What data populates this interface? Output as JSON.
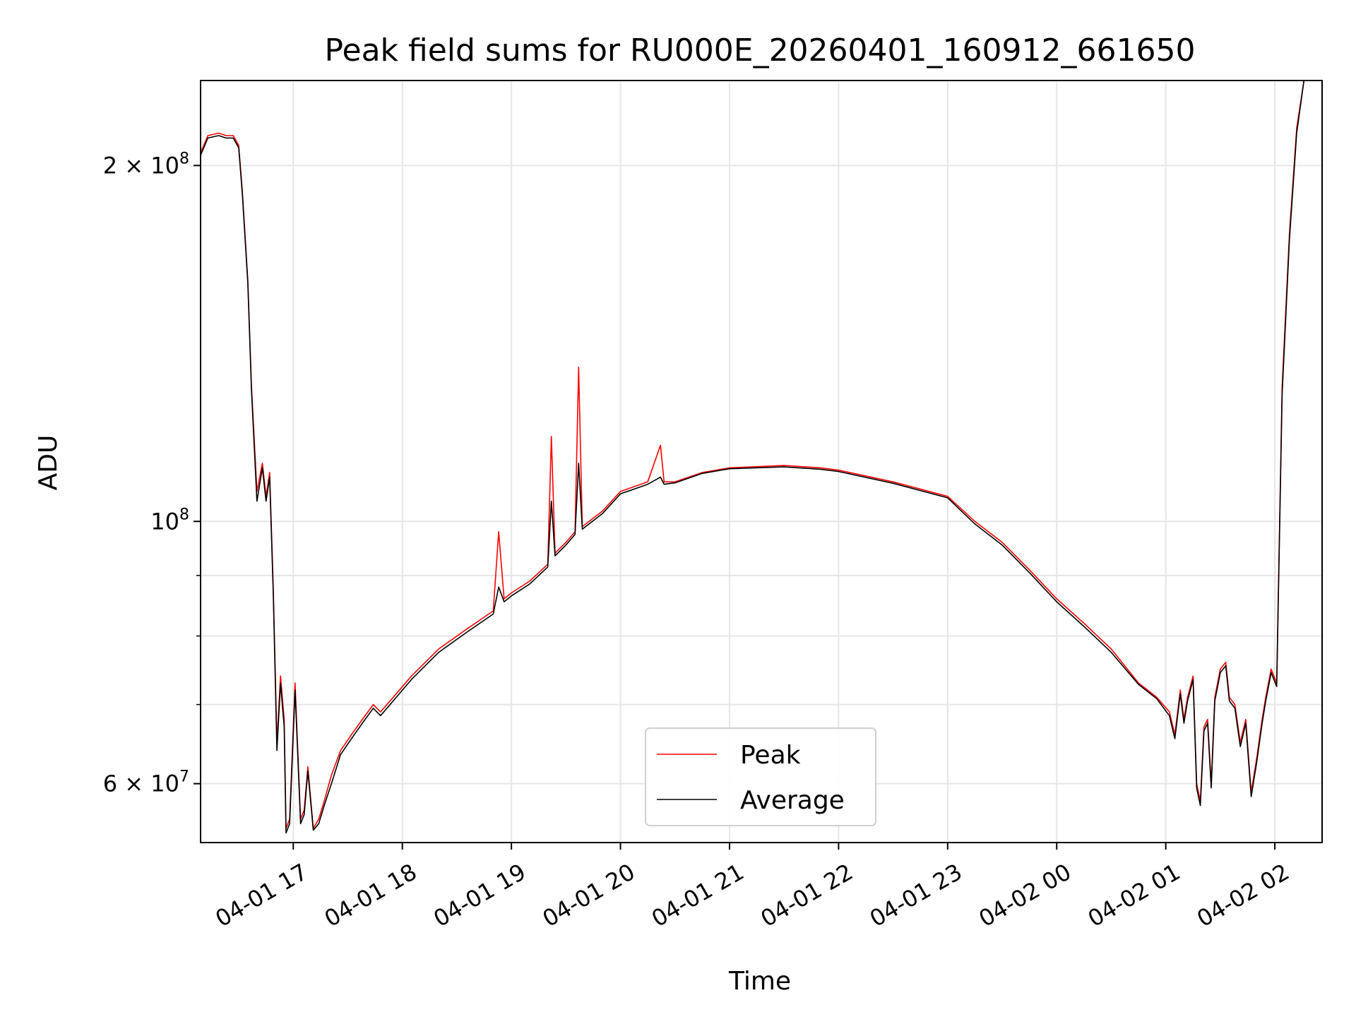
{
  "chart_data": {
    "type": "line",
    "title": "Peak field sums for RU000E_20260401_160912_661650",
    "xlabel": "Time",
    "ylabel": "ADU",
    "y_scale": "log",
    "ylim": [
      53500000,
      236000000
    ],
    "xlim": [
      "2026-04-01 16:09",
      "2026-04-02 02:26"
    ],
    "grid": true,
    "legend_position": "lower center",
    "x_ticks": [
      {
        "t": "2026-04-01 17:00",
        "label": "04-01 17"
      },
      {
        "t": "2026-04-01 18:00",
        "label": "04-01 18"
      },
      {
        "t": "2026-04-01 19:00",
        "label": "04-01 19"
      },
      {
        "t": "2026-04-01 20:00",
        "label": "04-01 20"
      },
      {
        "t": "2026-04-01 21:00",
        "label": "04-01 21"
      },
      {
        "t": "2026-04-01 22:00",
        "label": "04-01 22"
      },
      {
        "t": "2026-04-01 23:00",
        "label": "04-01 23"
      },
      {
        "t": "2026-04-02 00:00",
        "label": "04-02 00"
      },
      {
        "t": "2026-04-02 01:00",
        "label": "04-02 01"
      },
      {
        "t": "2026-04-02 02:00",
        "label": "04-02 02"
      }
    ],
    "y_major_ticks": [
      {
        "value": 60000000,
        "mantissa": "6",
        "exp": "7"
      },
      {
        "value": 100000000,
        "mantissa": "",
        "exp": "8"
      },
      {
        "value": 200000000,
        "mantissa": "2",
        "exp": "8"
      }
    ],
    "y_minor_ticks": [
      70000000,
      80000000,
      90000000
    ],
    "series": [
      {
        "name": "Peak",
        "color": "#ff0000",
        "x": [
          "2026-04-01 16:09",
          "2026-04-01 16:13",
          "2026-04-01 16:19",
          "2026-04-01 16:23",
          "2026-04-01 16:27",
          "2026-04-01 16:30",
          "2026-04-01 16:32",
          "2026-04-01 16:35",
          "2026-04-01 16:37",
          "2026-04-01 16:40",
          "2026-04-01 16:43",
          "2026-04-01 16:45",
          "2026-04-01 16:47",
          "2026-04-01 16:49",
          "2026-04-01 16:51",
          "2026-04-01 16:53",
          "2026-04-01 16:55",
          "2026-04-01 16:56",
          "2026-04-01 16:58",
          "2026-04-01 17:01",
          "2026-04-01 17:04",
          "2026-04-01 17:06",
          "2026-04-01 17:08",
          "2026-04-01 17:11",
          "2026-04-01 17:14",
          "2026-04-01 17:17",
          "2026-04-01 17:21",
          "2026-04-01 17:26",
          "2026-04-01 17:32",
          "2026-04-01 17:38",
          "2026-04-01 17:44",
          "2026-04-01 17:48",
          "2026-04-01 17:55",
          "2026-04-01 18:05",
          "2026-04-01 18:20",
          "2026-04-01 18:35",
          "2026-04-01 18:50",
          "2026-04-01 18:53",
          "2026-04-01 18:56",
          "2026-04-01 19:00",
          "2026-04-01 19:10",
          "2026-04-01 19:20",
          "2026-04-01 19:22",
          "2026-04-01 19:24",
          "2026-04-01 19:30",
          "2026-04-01 19:35",
          "2026-04-01 19:37",
          "2026-04-01 19:39",
          "2026-04-01 19:50",
          "2026-04-01 20:00",
          "2026-04-01 20:15",
          "2026-04-01 20:22",
          "2026-04-01 20:24",
          "2026-04-01 20:30",
          "2026-04-01 20:45",
          "2026-04-01 21:00",
          "2026-04-01 21:30",
          "2026-04-01 21:50",
          "2026-04-01 22:00",
          "2026-04-01 22:30",
          "2026-04-01 23:00",
          "2026-04-01 23:15",
          "2026-04-01 23:30",
          "2026-04-01 23:45",
          "2026-04-02 00:00",
          "2026-04-02 00:15",
          "2026-04-02 00:30",
          "2026-04-02 00:45",
          "2026-04-02 00:55",
          "2026-04-02 01:02",
          "2026-04-02 01:05",
          "2026-04-02 01:08",
          "2026-04-02 01:10",
          "2026-04-02 01:12",
          "2026-04-02 01:15",
          "2026-04-02 01:17",
          "2026-04-02 01:19",
          "2026-04-02 01:21",
          "2026-04-02 01:23",
          "2026-04-02 01:25",
          "2026-04-02 01:27",
          "2026-04-02 01:30",
          "2026-04-02 01:33",
          "2026-04-02 01:35",
          "2026-04-02 01:38",
          "2026-04-02 01:41",
          "2026-04-02 01:44",
          "2026-04-02 01:47",
          "2026-04-02 01:50",
          "2026-04-02 01:53",
          "2026-04-02 01:55",
          "2026-04-02 01:58",
          "2026-04-02 02:01",
          "2026-04-02 02:04",
          "2026-04-02 02:08",
          "2026-04-02 02:12",
          "2026-04-02 02:16",
          "2026-04-02 02:18"
        ],
        "y": [
          205000000,
          212000000,
          213000000,
          212000000,
          212000000,
          208000000,
          190000000,
          160000000,
          130000000,
          106000000,
          112000000,
          105000000,
          110000000,
          88000000,
          65000000,
          74000000,
          68000000,
          55000000,
          56000000,
          73000000,
          56000000,
          57000000,
          62000000,
          55000000,
          56000000,
          58000000,
          61000000,
          64000000,
          66000000,
          68000000,
          70000000,
          69000000,
          71000000,
          74000000,
          78000000,
          81000000,
          84000000,
          98000000,
          86000000,
          87000000,
          89000000,
          92000000,
          118000000,
          94000000,
          96000000,
          98000000,
          135000000,
          99000000,
          102000000,
          106000000,
          108000000,
          116000000,
          108000000,
          108000000,
          110000000,
          111000000,
          111500000,
          111000000,
          110500000,
          108000000,
          105000000,
          100000000,
          96000000,
          91000000,
          86000000,
          82000000,
          78000000,
          73000000,
          71000000,
          69000000,
          66000000,
          72000000,
          68000000,
          71000000,
          74000000,
          60000000,
          58000000,
          67000000,
          68000000,
          60000000,
          71000000,
          75000000,
          76000000,
          71000000,
          70000000,
          65000000,
          68000000,
          59000000,
          63000000,
          68000000,
          71000000,
          75000000,
          73000000,
          130000000,
          175000000,
          215000000,
          236000000,
          236000000
        ]
      },
      {
        "name": "Average",
        "color": "#000000",
        "x": [
          "2026-04-01 16:09",
          "2026-04-01 16:13",
          "2026-04-01 16:19",
          "2026-04-01 16:23",
          "2026-04-01 16:27",
          "2026-04-01 16:30",
          "2026-04-01 16:32",
          "2026-04-01 16:35",
          "2026-04-01 16:37",
          "2026-04-01 16:40",
          "2026-04-01 16:43",
          "2026-04-01 16:45",
          "2026-04-01 16:47",
          "2026-04-01 16:49",
          "2026-04-01 16:51",
          "2026-04-01 16:53",
          "2026-04-01 16:55",
          "2026-04-01 16:56",
          "2026-04-01 16:58",
          "2026-04-01 17:01",
          "2026-04-01 17:04",
          "2026-04-01 17:06",
          "2026-04-01 17:08",
          "2026-04-01 17:11",
          "2026-04-01 17:14",
          "2026-04-01 17:17",
          "2026-04-01 17:21",
          "2026-04-01 17:26",
          "2026-04-01 17:32",
          "2026-04-01 17:38",
          "2026-04-01 17:44",
          "2026-04-01 17:48",
          "2026-04-01 17:55",
          "2026-04-01 18:05",
          "2026-04-01 18:20",
          "2026-04-01 18:35",
          "2026-04-01 18:50",
          "2026-04-01 18:53",
          "2026-04-01 18:56",
          "2026-04-01 19:00",
          "2026-04-01 19:10",
          "2026-04-01 19:20",
          "2026-04-01 19:22",
          "2026-04-01 19:24",
          "2026-04-01 19:30",
          "2026-04-01 19:35",
          "2026-04-01 19:37",
          "2026-04-01 19:39",
          "2026-04-01 19:50",
          "2026-04-01 20:00",
          "2026-04-01 20:15",
          "2026-04-01 20:22",
          "2026-04-01 20:24",
          "2026-04-01 20:30",
          "2026-04-01 20:45",
          "2026-04-01 21:00",
          "2026-04-01 21:30",
          "2026-04-01 21:50",
          "2026-04-01 22:00",
          "2026-04-01 22:30",
          "2026-04-01 23:00",
          "2026-04-01 23:15",
          "2026-04-01 23:30",
          "2026-04-01 23:45",
          "2026-04-02 00:00",
          "2026-04-02 00:15",
          "2026-04-02 00:30",
          "2026-04-02 00:45",
          "2026-04-02 00:55",
          "2026-04-02 01:02",
          "2026-04-02 01:05",
          "2026-04-02 01:08",
          "2026-04-02 01:10",
          "2026-04-02 01:12",
          "2026-04-02 01:15",
          "2026-04-02 01:17",
          "2026-04-02 01:19",
          "2026-04-02 01:21",
          "2026-04-02 01:23",
          "2026-04-02 01:25",
          "2026-04-02 01:27",
          "2026-04-02 01:30",
          "2026-04-02 01:33",
          "2026-04-02 01:35",
          "2026-04-02 01:38",
          "2026-04-02 01:41",
          "2026-04-02 01:44",
          "2026-04-02 01:47",
          "2026-04-02 01:50",
          "2026-04-02 01:53",
          "2026-04-02 01:55",
          "2026-04-02 01:58",
          "2026-04-02 02:01",
          "2026-04-02 02:04",
          "2026-04-02 02:08",
          "2026-04-02 02:12",
          "2026-04-02 02:16",
          "2026-04-02 02:18"
        ],
        "y": [
          204000000,
          211000000,
          212000000,
          211000000,
          211000000,
          207000000,
          189000000,
          159000000,
          129000000,
          104000000,
          111000000,
          104000000,
          109000000,
          87000000,
          64000000,
          73000000,
          67000000,
          54500000,
          55500000,
          72000000,
          55500000,
          56500000,
          61500000,
          54800000,
          55500000,
          57500000,
          60000000,
          63500000,
          65500000,
          67500000,
          69500000,
          68500000,
          70500000,
          73500000,
          77500000,
          80500000,
          83500000,
          88000000,
          85500000,
          86500000,
          88500000,
          91500000,
          104000000,
          93500000,
          95500000,
          97500000,
          112000000,
          98500000,
          101500000,
          105500000,
          107500000,
          109000000,
          107500000,
          107800000,
          109800000,
          110800000,
          111200000,
          110700000,
          110200000,
          107700000,
          104700000,
          99500000,
          95500000,
          90500000,
          85500000,
          81500000,
          77500000,
          72800000,
          70800000,
          68500000,
          65500000,
          71500000,
          67500000,
          70500000,
          73500000,
          59500000,
          57500000,
          66500000,
          67500000,
          59500000,
          70500000,
          74500000,
          75500000,
          70500000,
          69500000,
          64500000,
          67500000,
          58500000,
          62500000,
          67500000,
          70500000,
          74500000,
          72500000,
          128000000,
          173000000,
          213000000,
          236000000,
          236000000
        ]
      }
    ]
  }
}
